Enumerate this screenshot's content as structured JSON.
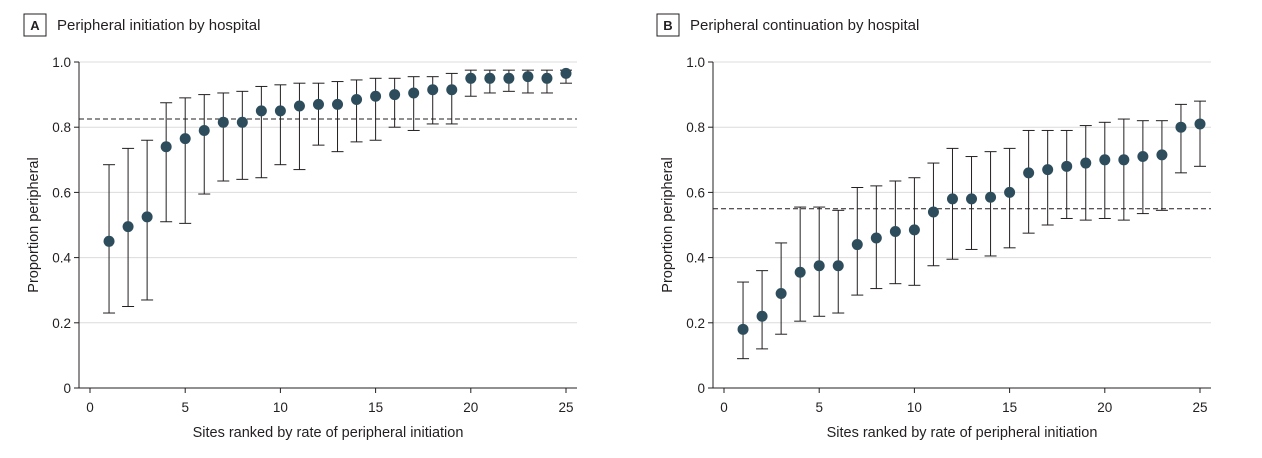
{
  "chart_data": [
    {
      "type": "scatter",
      "panel_letter": "A",
      "title": "Peripheral initiation by hospital",
      "xlabel": "Sites ranked by rate of peripheral initiation",
      "ylabel": "Proportion peripheral",
      "xlim": [
        0,
        25
      ],
      "ylim": [
        0,
        1.0
      ],
      "x_ticks": [
        0,
        5,
        10,
        15,
        20,
        25
      ],
      "y_ticks": [
        "0",
        "0.2",
        "0.4",
        "0.6",
        "0.8",
        "1.0"
      ],
      "grid": "horizontal",
      "reference_line": 0.825,
      "x": [
        1,
        2,
        3,
        4,
        5,
        6,
        7,
        8,
        9,
        10,
        11,
        12,
        13,
        14,
        15,
        16,
        17,
        18,
        19,
        20,
        21,
        22,
        23,
        24,
        25
      ],
      "y": [
        0.45,
        0.495,
        0.525,
        0.74,
        0.765,
        0.79,
        0.815,
        0.815,
        0.85,
        0.85,
        0.865,
        0.87,
        0.87,
        0.885,
        0.895,
        0.9,
        0.905,
        0.915,
        0.915,
        0.95,
        0.95,
        0.95,
        0.955,
        0.95,
        0.965
      ],
      "lower": [
        0.23,
        0.25,
        0.27,
        0.51,
        0.505,
        0.595,
        0.635,
        0.64,
        0.645,
        0.685,
        0.67,
        0.745,
        0.725,
        0.755,
        0.76,
        0.8,
        0.79,
        0.81,
        0.81,
        0.895,
        0.905,
        0.91,
        0.905,
        0.905,
        0.935
      ],
      "upper": [
        0.685,
        0.735,
        0.76,
        0.875,
        0.89,
        0.9,
        0.905,
        0.91,
        0.925,
        0.93,
        0.935,
        0.935,
        0.94,
        0.945,
        0.95,
        0.95,
        0.955,
        0.955,
        0.965,
        0.975,
        0.975,
        0.975,
        0.975,
        0.975,
        0.975
      ]
    },
    {
      "type": "scatter",
      "panel_letter": "B",
      "title": "Peripheral continuation by hospital",
      "xlabel": "Sites ranked by rate of peripheral initiation",
      "ylabel": "Proportion peripheral",
      "xlim": [
        0,
        25
      ],
      "ylim": [
        0,
        1.0
      ],
      "x_ticks": [
        0,
        5,
        10,
        15,
        20,
        25
      ],
      "y_ticks": [
        "0",
        "0.2",
        "0.4",
        "0.6",
        "0.8",
        "1.0"
      ],
      "grid": "horizontal",
      "reference_line": 0.55,
      "x": [
        1,
        2,
        3,
        4,
        5,
        6,
        7,
        8,
        9,
        10,
        11,
        12,
        13,
        14,
        15,
        16,
        17,
        18,
        19,
        20,
        21,
        22,
        23,
        24,
        25
      ],
      "y": [
        0.18,
        0.22,
        0.29,
        0.355,
        0.375,
        0.375,
        0.44,
        0.46,
        0.48,
        0.485,
        0.54,
        0.58,
        0.58,
        0.585,
        0.6,
        0.66,
        0.67,
        0.68,
        0.69,
        0.7,
        0.7,
        0.71,
        0.715,
        0.8,
        0.81
      ],
      "lower": [
        0.09,
        0.12,
        0.165,
        0.205,
        0.22,
        0.23,
        0.285,
        0.305,
        0.32,
        0.315,
        0.375,
        0.395,
        0.425,
        0.405,
        0.43,
        0.475,
        0.5,
        0.52,
        0.515,
        0.52,
        0.515,
        0.535,
        0.545,
        0.66,
        0.68
      ],
      "upper": [
        0.325,
        0.36,
        0.445,
        0.555,
        0.555,
        0.545,
        0.615,
        0.62,
        0.635,
        0.645,
        0.69,
        0.735,
        0.71,
        0.725,
        0.735,
        0.79,
        0.79,
        0.79,
        0.805,
        0.815,
        0.825,
        0.82,
        0.82,
        0.87,
        0.88
      ]
    }
  ]
}
